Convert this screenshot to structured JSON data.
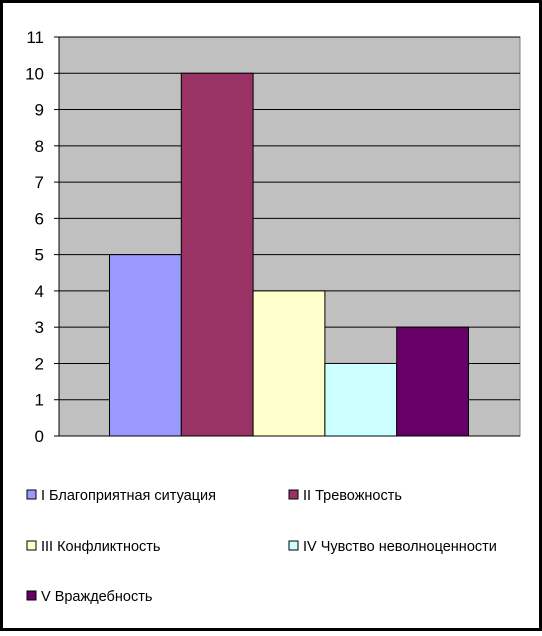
{
  "chart_data": {
    "type": "bar",
    "title": "",
    "xlabel": "",
    "ylabel": "",
    "ylim": [
      0,
      11
    ],
    "y_ticks": [
      "0",
      "1",
      "2",
      "3",
      "4",
      "5",
      "6",
      "7",
      "8",
      "9",
      "10",
      "11"
    ],
    "grid": "horizontal",
    "legend_position": "bottom",
    "plot_background": "#C0C0C0",
    "series": [
      {
        "name": "I Благоприятная ситуация",
        "values": [
          5
        ],
        "color": "#9999FF"
      },
      {
        "name": "II Тревожность",
        "values": [
          10
        ],
        "color": "#993366"
      },
      {
        "name": "III Конфликтность",
        "values": [
          4
        ],
        "color": "#FFFFCC"
      },
      {
        "name": "IV Чувство неволноценности",
        "values": [
          2
        ],
        "color": "#CCFFFF"
      },
      {
        "name": "V Враждебность",
        "values": [
          3
        ],
        "color": "#660066"
      }
    ]
  }
}
